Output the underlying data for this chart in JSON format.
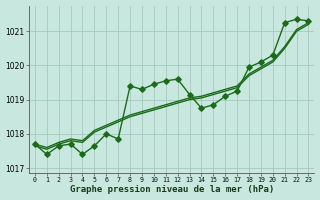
{
  "title": "Graphe pression niveau de la mer (hPa)",
  "line_zigzag": [
    1017.7,
    1017.4,
    1017.65,
    1017.7,
    1017.4,
    1017.65,
    1018.0,
    1017.85,
    1019.4,
    1019.3,
    1019.45,
    1019.55,
    1019.6,
    1019.15,
    1018.75,
    1018.85,
    1019.1,
    1019.25,
    1019.95,
    1020.1,
    1020.3,
    1021.25,
    1021.35,
    1021.3
  ],
  "line_trend1": [
    1017.65,
    1017.55,
    1017.7,
    1017.8,
    1017.75,
    1018.05,
    1018.2,
    1018.35,
    1018.5,
    1018.6,
    1018.7,
    1018.8,
    1018.9,
    1019.0,
    1019.05,
    1019.15,
    1019.25,
    1019.35,
    1019.7,
    1019.9,
    1020.1,
    1020.5,
    1021.0,
    1021.2
  ],
  "line_trend2": [
    1017.7,
    1017.6,
    1017.75,
    1017.85,
    1017.8,
    1018.1,
    1018.25,
    1018.4,
    1018.55,
    1018.65,
    1018.75,
    1018.85,
    1018.95,
    1019.05,
    1019.1,
    1019.2,
    1019.3,
    1019.4,
    1019.75,
    1019.95,
    1020.15,
    1020.55,
    1021.05,
    1021.25
  ],
  "x": [
    0,
    1,
    2,
    3,
    4,
    5,
    6,
    7,
    8,
    9,
    10,
    11,
    12,
    13,
    14,
    15,
    16,
    17,
    18,
    19,
    20,
    21,
    22,
    23
  ],
  "ylim": [
    1016.85,
    1021.75
  ],
  "yticks": [
    1017,
    1018,
    1019,
    1020,
    1021
  ],
  "line_color": "#1a6b1a",
  "bg_color": "#c8e8df",
  "grid_color": "#9dc4b4",
  "markersize": 2.8,
  "linewidth": 1.0
}
